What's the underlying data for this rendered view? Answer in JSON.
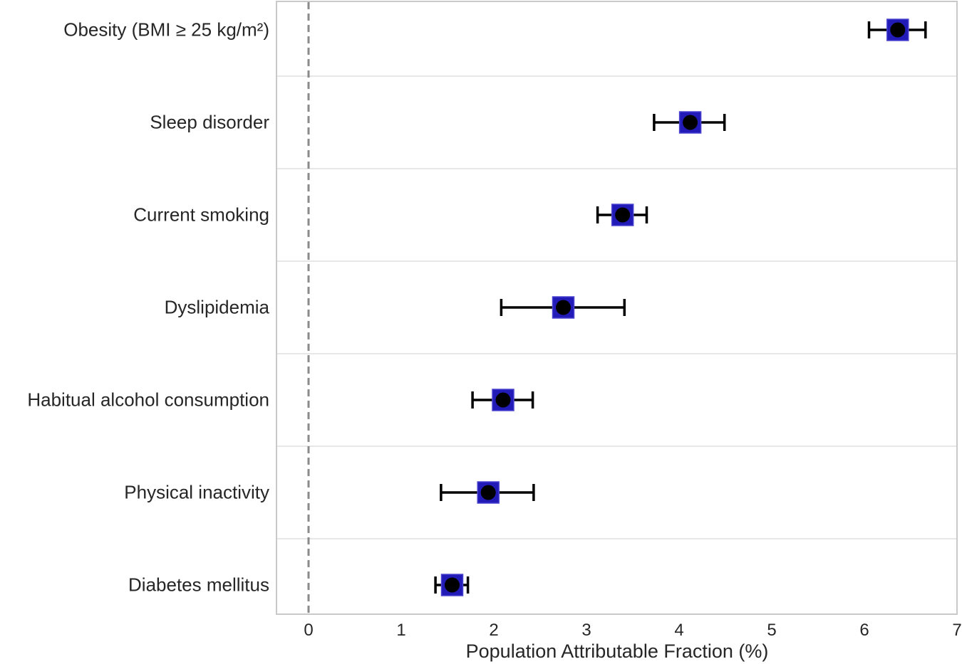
{
  "chart_data": {
    "type": "scatter",
    "subtype": "horizontal-errorbar-forest-plot",
    "title": "",
    "xlabel": "Population Attributable Fraction (%)",
    "ylabel": "",
    "xlim": [
      -0.35,
      7
    ],
    "xtick_labels": [
      "0",
      "1",
      "2",
      "3",
      "4",
      "5",
      "6",
      "7"
    ],
    "grid": "horizontal band separators on, vertical off",
    "legend": "none",
    "zero_reference_line": 0,
    "categories": [
      "Obesity (BMI ≥ 25 kg/m²)",
      "Sleep disorder",
      "Current smoking",
      "Dyslipidemia",
      "Habitual alcohol consumption",
      "Physical inactivity",
      "Diabetes mellitus"
    ],
    "series": [
      {
        "name": "PAF (%)",
        "values": [
          6.36,
          4.12,
          3.39,
          2.75,
          2.1,
          1.94,
          1.55
        ],
        "ci_low": [
          6.05,
          3.73,
          3.12,
          2.08,
          1.77,
          1.43,
          1.37
        ],
        "ci_high": [
          6.66,
          4.49,
          3.65,
          3.41,
          2.42,
          2.43,
          1.72
        ]
      }
    ],
    "colors": {
      "marker_fill": "#221bb8",
      "marker_edge": "#4a43cf",
      "marker_dot": "#000000",
      "errorbar": "#000000",
      "zero_line": "#8a8a8a",
      "gridline": "#e7e7e7",
      "spine": "#c9c9c9",
      "text": "#262626"
    }
  }
}
